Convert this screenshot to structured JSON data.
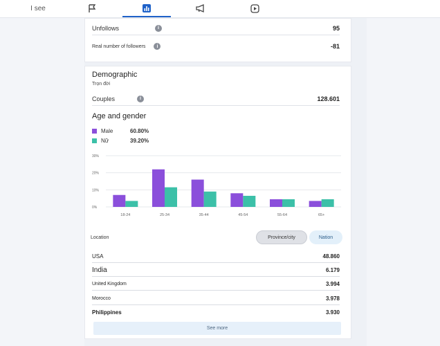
{
  "tabs": [
    {
      "label": "I see",
      "icon": "eye-icon"
    },
    {
      "label": "",
      "icon": "flag-icon"
    },
    {
      "label": "",
      "icon": "bar-chart-icon"
    },
    {
      "label": "",
      "icon": "megaphone-icon"
    },
    {
      "label": "",
      "icon": "play-icon"
    }
  ],
  "active_tab_color": "#1f62c9",
  "followers": {
    "unfollows_label": "Unfollows",
    "unfollows_value": "95",
    "real_label": "Real number of followers",
    "real_value": "-81"
  },
  "demographic": {
    "title": "Demographic",
    "subtitle": "Trọn đời",
    "couples_label": "Couples",
    "couples_value": "128.601",
    "age_gender_title": "Age and gender",
    "legend": [
      {
        "name": "Male",
        "pct": "60.80%",
        "color": "#8b4fdb"
      },
      {
        "name": "Nữ",
        "pct": "39.20%",
        "color": "#3cc0a8"
      }
    ]
  },
  "chart_data": {
    "type": "bar",
    "categories": [
      "18-24",
      "25-34",
      "35-44",
      "45-54",
      "55-64",
      "65+"
    ],
    "series": [
      {
        "name": "Male",
        "values": [
          7,
          22,
          16,
          8,
          4.5,
          3.5
        ]
      },
      {
        "name": "Nữ",
        "values": [
          3.5,
          11.5,
          9,
          6.5,
          4.5,
          4.5
        ]
      }
    ],
    "yticks": [
      "0%",
      "10%",
      "20%",
      "30%"
    ],
    "ylim": [
      0,
      30
    ],
    "grid": true,
    "colors": [
      "#8b4fdb",
      "#3cc0a8"
    ]
  },
  "location": {
    "label": "Location",
    "province_button": "Province/city",
    "nation_button": "Nation",
    "rows": [
      {
        "country": "USA",
        "value": "48.860"
      },
      {
        "country": "India",
        "value": "6.179"
      },
      {
        "country": "United Kingdom",
        "value": "3.994"
      },
      {
        "country": "Morocco",
        "value": "3.978"
      },
      {
        "country": "Philippines",
        "value": "3.930"
      }
    ],
    "see_more": "See more"
  }
}
